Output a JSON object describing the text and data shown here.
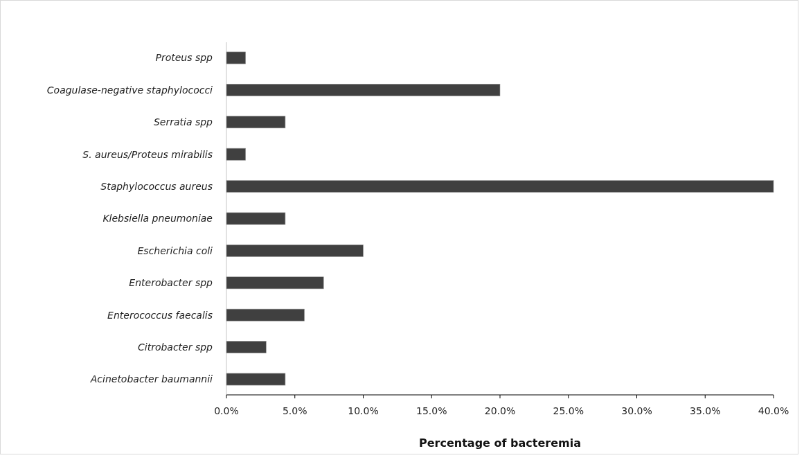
{
  "chart_data": {
    "type": "bar",
    "orientation": "horizontal",
    "xlabel": "Percentage of bacteremia",
    "categories": [
      "Proteus spp",
      "Coagulase-negative staphylococci",
      "Serratia spp",
      "S. aureus/Proteus mirabilis",
      "Staphylococcus aureus",
      "Klebsiella pneumoniae",
      "Escherichia coli",
      "Enterobacter spp",
      "Enterococcus faecalis",
      "Citrobacter spp",
      "Acinetobacter baumannii"
    ],
    "values": [
      1.4,
      20.0,
      4.3,
      1.4,
      40.0,
      4.3,
      10.0,
      7.1,
      5.7,
      2.9,
      4.3
    ],
    "color": "#404040",
    "xlim": [
      0,
      40
    ],
    "xticks": [
      {
        "value": 0,
        "label": "0.0%"
      },
      {
        "value": 5,
        "label": "5.0%"
      },
      {
        "value": 10,
        "label": "10.0%"
      },
      {
        "value": 15,
        "label": "15.0%"
      },
      {
        "value": 20,
        "label": "20.0%"
      },
      {
        "value": 25,
        "label": "25.0%"
      },
      {
        "value": 30,
        "label": "30.0%"
      },
      {
        "value": 35,
        "label": "35.0%"
      },
      {
        "value": 40,
        "label": "40.0%"
      }
    ]
  }
}
